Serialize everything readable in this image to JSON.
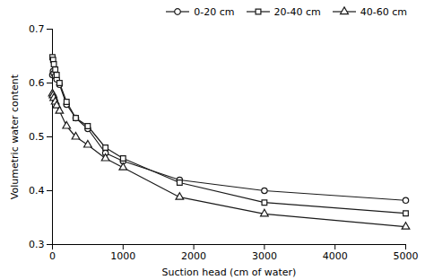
{
  "chart_data": {
    "type": "line",
    "xlabel": "Suction head (cm of water)",
    "ylabel": "Volumetric water content",
    "x": [
      0,
      10,
      20,
      40,
      60,
      100,
      200,
      330,
      500,
      750,
      1000,
      1800,
      3000,
      5000
    ],
    "series": [
      {
        "name": "0-20 cm",
        "marker": "circle",
        "values": [
          0.615,
          0.622,
          0.618,
          0.613,
          0.607,
          0.597,
          0.56,
          0.535,
          0.515,
          0.47,
          0.455,
          0.42,
          0.4,
          0.382
        ]
      },
      {
        "name": "20-40 cm",
        "marker": "square",
        "values": [
          0.648,
          0.643,
          0.635,
          0.625,
          0.615,
          0.6,
          0.565,
          0.535,
          0.52,
          0.48,
          0.46,
          0.415,
          0.378,
          0.358
        ]
      },
      {
        "name": "40-60 cm",
        "marker": "triangle",
        "values": [
          0.58,
          0.577,
          0.572,
          0.565,
          0.558,
          0.548,
          0.52,
          0.5,
          0.485,
          0.46,
          0.443,
          0.388,
          0.357,
          0.333
        ]
      }
    ],
    "color": "#1a1a1a",
    "xlim": [
      0,
      5000
    ],
    "ylim": [
      0.3,
      0.7
    ],
    "xticks": [
      0,
      1000,
      2000,
      3000,
      4000,
      5000
    ],
    "yticks": [
      0.3,
      0.4,
      0.5,
      0.6,
      0.7
    ],
    "grid": false,
    "legend": "upper right"
  }
}
